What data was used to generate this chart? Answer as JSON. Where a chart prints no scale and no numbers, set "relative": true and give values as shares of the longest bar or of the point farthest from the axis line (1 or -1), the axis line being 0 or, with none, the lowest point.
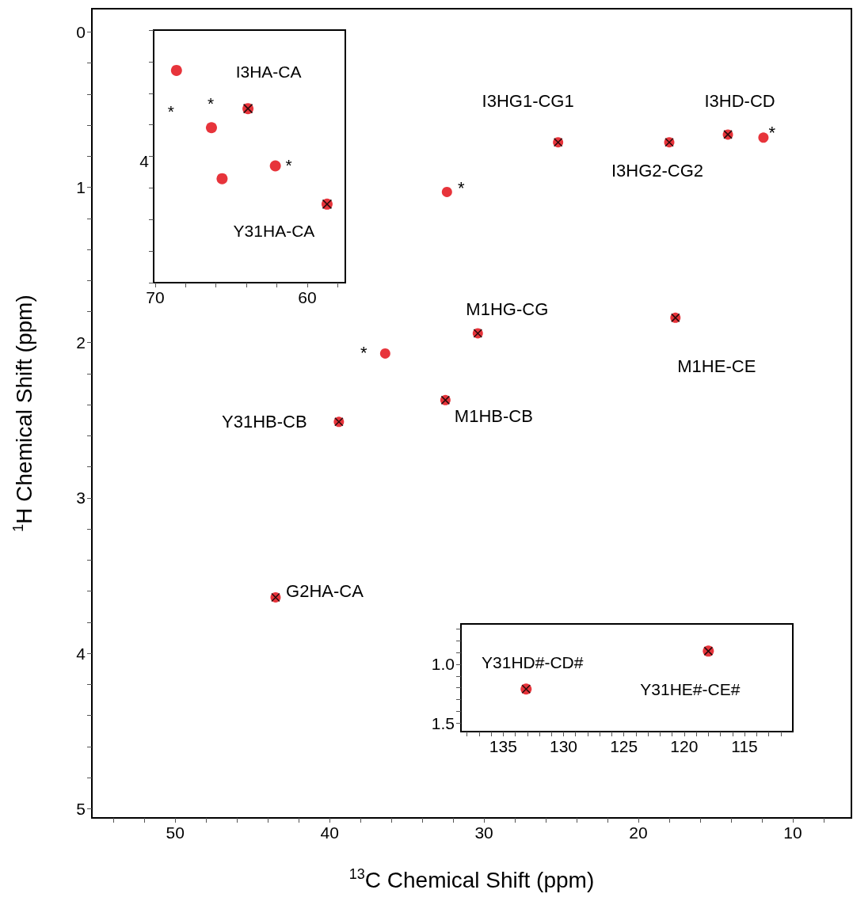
{
  "chart_data": [
    {
      "type": "scatter",
      "xlabel": "$^{13}$C Chemical Shift (ppm)",
      "ylabel": "$^{1}$H Chemical Shift (ppm)",
      "xlim": [
        55.4,
        6.2
      ],
      "ylim": [
        5.06,
        -0.15
      ],
      "xticks": [
        {
          "value": 54,
          "label": null
        },
        {
          "value": 52,
          "label": null
        },
        50,
        {
          "value": 48,
          "label": null
        },
        {
          "value": 46,
          "label": null
        },
        {
          "value": 44,
          "label": null
        },
        {
          "value": 42,
          "label": null
        },
        40,
        {
          "value": 38,
          "label": null
        },
        {
          "value": 36,
          "label": null
        },
        {
          "value": 34,
          "label": null
        },
        {
          "value": 32,
          "label": null
        },
        30,
        {
          "value": 28,
          "label": null
        },
        {
          "value": 26,
          "label": null
        },
        {
          "value": 24,
          "label": null
        },
        {
          "value": 22,
          "label": null
        },
        20,
        {
          "value": 18,
          "label": null
        },
        {
          "value": 16,
          "label": null
        },
        {
          "value": 14,
          "label": null
        },
        {
          "value": 12,
          "label": null
        },
        10,
        {
          "value": 8,
          "label": null
        }
      ],
      "yticks": [
        0,
        {
          "value": 0.2,
          "label": null
        },
        {
          "value": 0.4,
          "label": null
        },
        {
          "value": 0.6,
          "label": null
        },
        {
          "value": 0.8,
          "label": null
        },
        1,
        {
          "value": 1.2,
          "label": null
        },
        {
          "value": 1.4,
          "label": null
        },
        {
          "value": 1.6,
          "label": null
        },
        {
          "value": 1.8,
          "label": null
        },
        2,
        {
          "value": 2.2,
          "label": null
        },
        {
          "value": 2.4,
          "label": null
        },
        {
          "value": 2.6,
          "label": null
        },
        {
          "value": 2.8,
          "label": null
        },
        3,
        {
          "value": 3.2,
          "label": null
        },
        {
          "value": 3.4,
          "label": null
        },
        {
          "value": 3.6,
          "label": null
        },
        {
          "value": 3.8,
          "label": null
        },
        4,
        {
          "value": 4.2,
          "label": null
        },
        {
          "value": 4.4,
          "label": null
        },
        {
          "value": 4.6,
          "label": null
        },
        {
          "value": 4.8,
          "label": null
        },
        5
      ],
      "series": [
        {
          "color": "#e41e26",
          "marker": "circle",
          "x": [
            25.2,
            18.0,
            14.2,
            11.9,
            32.4,
            30.4,
            17.6,
            36.4,
            32.5,
            39.4,
            43.5
          ],
          "values": [
            0.71,
            0.71,
            0.66,
            0.68,
            1.03,
            1.94,
            1.84,
            2.07,
            2.37,
            2.51,
            3.64
          ]
        },
        {
          "color": "#000000",
          "marker": "cross",
          "x": [
            25.2,
            18.0,
            14.2,
            30.4,
            17.6,
            32.5,
            39.4,
            43.5
          ],
          "values": [
            0.71,
            0.71,
            0.66,
            1.94,
            1.84,
            2.37,
            2.51,
            3.64
          ]
        }
      ],
      "annotations": [
        {
          "text": "I3HG1-CG1",
          "x": 25.2,
          "y": 0.71
        },
        {
          "text": "I3HD-CD",
          "x": 14.2,
          "y": 0.66
        },
        {
          "text": "I3HG2-CG2",
          "x": 18.0,
          "y": 0.71
        },
        {
          "text": "M1HG-CG",
          "x": 30.4,
          "y": 1.94
        },
        {
          "text": "M1HE-CE",
          "x": 17.6,
          "y": 1.84
        },
        {
          "text": "M1HB-CB",
          "x": 32.5,
          "y": 2.37
        },
        {
          "text": "Y31HB-CB",
          "x": 39.4,
          "y": 2.51
        },
        {
          "text": "G2HA-CA",
          "x": 43.5,
          "y": 3.64
        },
        {
          "text": "*",
          "x": 11.9,
          "y": 0.68
        },
        {
          "text": "*",
          "x": 32.4,
          "y": 1.03
        },
        {
          "text": "*",
          "x": 36.4,
          "y": 2.07
        }
      ]
    },
    {
      "type": "scatter",
      "relative": true,
      "xlim": [
        70.1,
        57.5
      ],
      "xticks": [
        70,
        {
          "value": 68,
          "label": null
        },
        {
          "value": 66,
          "label": null
        },
        {
          "value": 64,
          "label": null
        },
        {
          "value": 62,
          "label": null
        },
        60,
        {
          "value": 58,
          "label": null
        }
      ],
      "series": [
        {
          "color": "#e41e26",
          "marker": "circle",
          "x": [
            68.6,
            66.3,
            63.9,
            65.6,
            62.1,
            58.7
          ],
          "values": [
            1,
            0.73,
            0.82,
            0.49,
            0.55,
            0.37
          ]
        },
        {
          "color": "#000000",
          "marker": "cross",
          "x": [
            63.9,
            58.7
          ],
          "values": [
            0.82,
            0.37
          ]
        }
      ],
      "annotations": [
        {
          "text": "I3HA-CA",
          "x": 63.9,
          "y": 0.82
        },
        {
          "text": "Y31HA-CA",
          "x": 58.7,
          "y": 0.37
        },
        {
          "text": "*",
          "x": 68.6,
          "y": 1
        },
        {
          "text": "*",
          "x": 66.3,
          "y": 0.73
        },
        {
          "text": "*",
          "x": 62.1,
          "y": 0.55
        },
        "4"
      ]
    },
    {
      "type": "scatter",
      "xlim": [
        138.5,
        111.0
      ],
      "ylim": [
        1.57,
        0.66
      ],
      "xticks": [
        {
          "value": 138,
          "label": null
        },
        {
          "value": 137,
          "label": null
        },
        {
          "value": 136,
          "label": null
        },
        135,
        {
          "value": 134,
          "label": null
        },
        {
          "value": 133,
          "label": null
        },
        {
          "value": 132,
          "label": null
        },
        {
          "value": 131,
          "label": null
        },
        130,
        {
          "value": 129,
          "label": null
        },
        {
          "value": 128,
          "label": null
        },
        {
          "value": 127,
          "label": null
        },
        {
          "value": 126,
          "label": null
        },
        125,
        {
          "value": 124,
          "label": null
        },
        {
          "value": 123,
          "label": null
        },
        {
          "value": 122,
          "label": null
        },
        {
          "value": 121,
          "label": null
        },
        120,
        {
          "value": 119,
          "label": null
        },
        {
          "value": 118,
          "label": null
        },
        {
          "value": 117,
          "label": null
        },
        {
          "value": 116,
          "label": null
        },
        115,
        {
          "value": 114,
          "label": null
        },
        {
          "value": 113,
          "label": null
        },
        {
          "value": 112,
          "label": null
        }
      ],
      "yticks": [
        {
          "value": 0.7,
          "label": null
        },
        {
          "value": 0.8,
          "label": null
        },
        {
          "value": 0.9,
          "label": null
        },
        {
          "value": 1,
          "label": "1.0"
        },
        {
          "value": 1.1,
          "label": null
        },
        {
          "value": 1.2,
          "label": null
        },
        {
          "value": 1.3,
          "label": null
        },
        {
          "value": 1.4,
          "label": null
        },
        1.5
      ],
      "series": [
        {
          "color": "#e41e26",
          "marker": "circle",
          "x": [
            133.1,
            118.0
          ],
          "values": [
            1.21,
            0.89
          ]
        },
        {
          "color": "#000000",
          "marker": "cross",
          "x": [
            133.1,
            118.0
          ],
          "values": [
            1.21,
            0.89
          ]
        }
      ],
      "annotations": [
        {
          "text": "Y31HD#-CD#",
          "x": 133.1,
          "y": 1.21
        },
        {
          "text": "Y31HE#-CE#",
          "x": 118.0,
          "y": 0.89
        }
      ]
    }
  ]
}
